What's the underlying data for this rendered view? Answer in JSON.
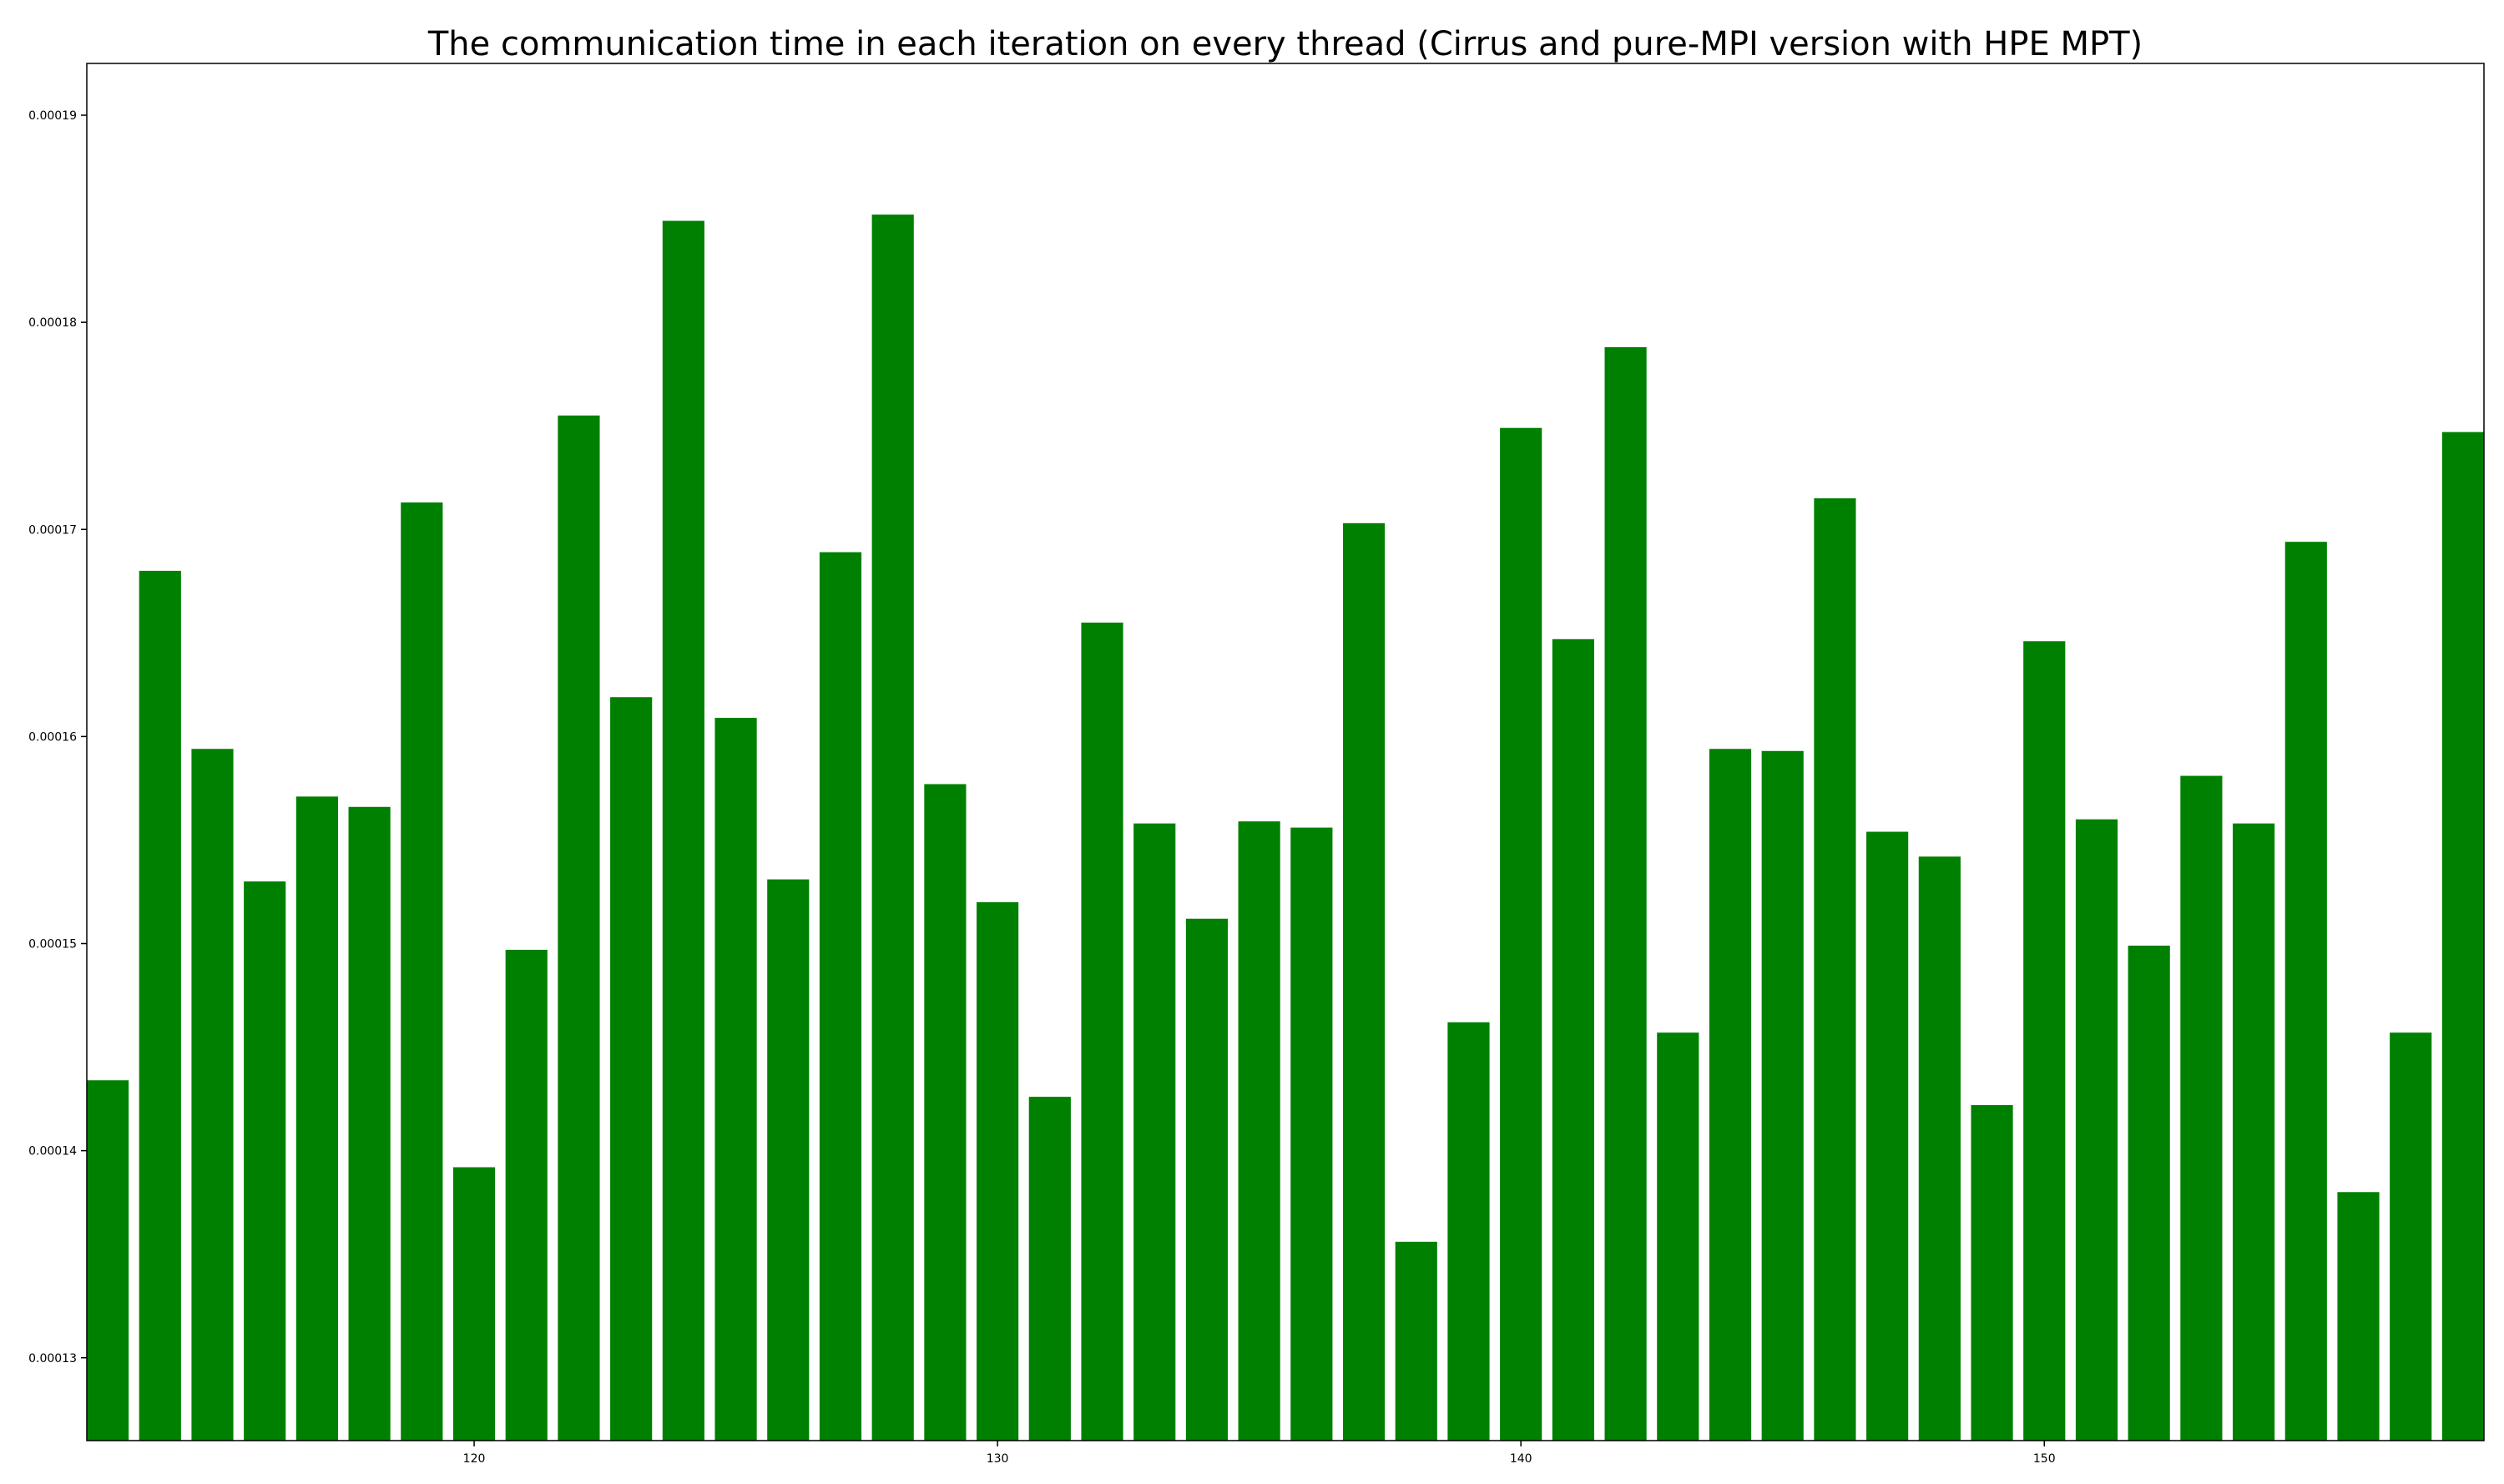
{
  "chart_data": {
    "type": "bar",
    "title": "The communication time in each iteration on every thread (Cirrus and pure-MPI version with HPE MPT)",
    "xlabel": "",
    "ylabel": "",
    "xlim": [
      112.6,
      158.4
    ],
    "ylim": [
      0.000126,
      0.0001925
    ],
    "x_ticks": [
      120,
      130,
      140,
      150
    ],
    "y_ticks": [
      0.00013,
      0.00014,
      0.00015,
      0.00016,
      0.00017,
      0.00018,
      0.00019
    ],
    "x_tick_labels": [
      "120",
      "130",
      "140",
      "150"
    ],
    "y_tick_labels": [
      "0.00013",
      "0.00014",
      "0.00015",
      "0.00016",
      "0.00017",
      "0.00018",
      "0.00019"
    ],
    "color": "#008000",
    "grid": false,
    "x": [
      113,
      114,
      115,
      116,
      117,
      118,
      119,
      120,
      121,
      122,
      123,
      124,
      125,
      126,
      127,
      128,
      129,
      130,
      131,
      132,
      133,
      134,
      135,
      136,
      137,
      138,
      139,
      140,
      141,
      142,
      143,
      144,
      145,
      146,
      147,
      148,
      149,
      150,
      151,
      152,
      153,
      154,
      155,
      156,
      157,
      158
    ],
    "values": [
      0.0001434,
      0.000168,
      0.0001594,
      0.000153,
      0.0001571,
      0.0001566,
      0.0001713,
      0.0001392,
      0.0001497,
      0.0001755,
      0.0001619,
      0.0001849,
      0.0001609,
      0.0001531,
      0.0001689,
      0.0001852,
      0.0001577,
      0.000152,
      0.0001426,
      0.0001655,
      0.0001558,
      0.0001512,
      0.0001559,
      0.0001556,
      0.0001703,
      0.0001356,
      0.0001462,
      0.0001749,
      0.0001647,
      0.0001788,
      0.0001457,
      0.0001594,
      0.0001593,
      0.0001715,
      0.0001554,
      0.0001542,
      0.0001422,
      0.0001646,
      0.000156,
      0.0001499,
      0.0001581,
      0.0001558,
      0.0001694,
      0.000138,
      0.0001457,
      0.0001747
    ]
  }
}
